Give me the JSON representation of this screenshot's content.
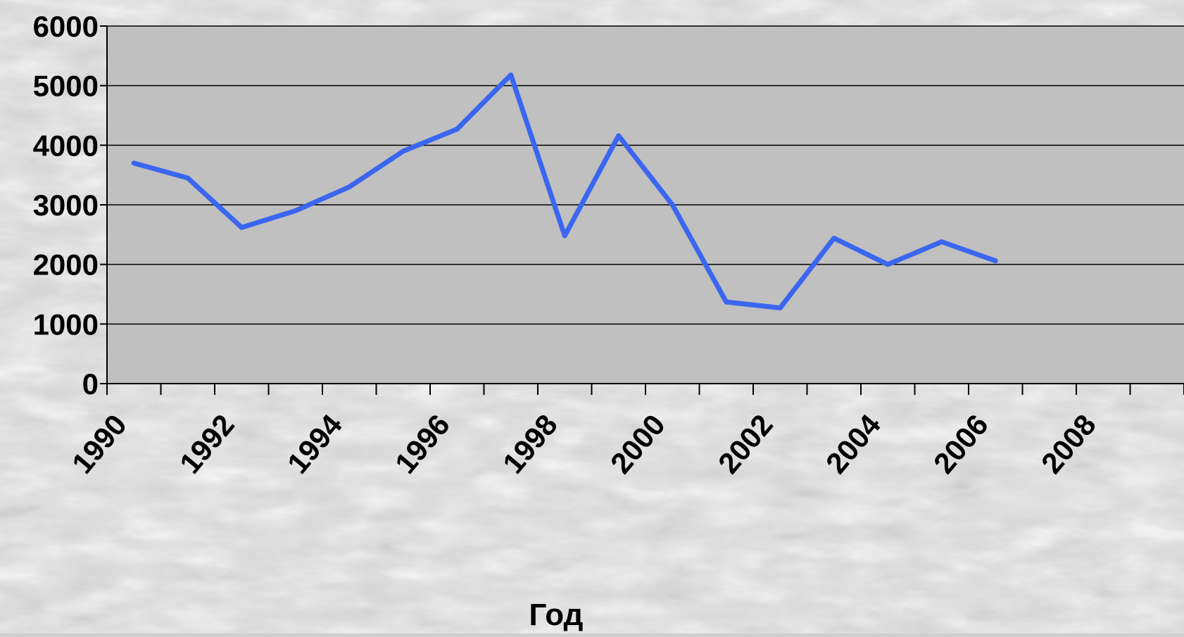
{
  "chart_data": {
    "type": "line",
    "title": "",
    "xlabel": "Год",
    "ylabel": "",
    "x": [
      1990,
      1991,
      1992,
      1993,
      1994,
      1995,
      1996,
      1997,
      1998,
      1999,
      2000,
      2001,
      2002,
      2003,
      2004,
      2005,
      2006
    ],
    "series": [
      {
        "values": [
          3700,
          3450,
          2620,
          2900,
          3300,
          3900,
          4270,
          5180,
          2480,
          4160,
          3000,
          1370,
          1270,
          2440,
          2000,
          2380,
          2060
        ]
      }
    ],
    "x_tick_labels": [
      "1990",
      "1992",
      "1994",
      "1996",
      "1998",
      "2000",
      "2002",
      "2004",
      "2006",
      "2008"
    ],
    "y_tick_labels": [
      "0",
      "1000",
      "2000",
      "3000",
      "4000",
      "5000",
      "6000"
    ],
    "xlim": [
      1989.5,
      2009.5
    ],
    "ylim": [
      0,
      6000
    ],
    "grid": "horizontal",
    "legend": "none",
    "colors": {
      "line": "#3a66f0",
      "plot_background": "#c0c0c0",
      "gridline": "#000000"
    }
  }
}
